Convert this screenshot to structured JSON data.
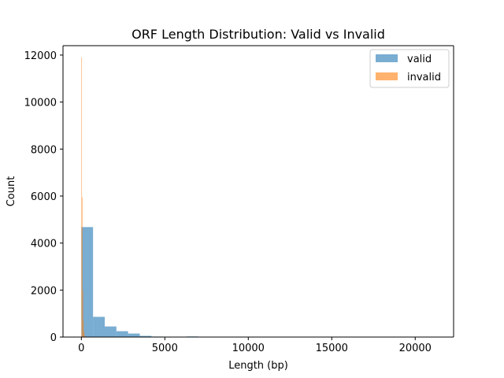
{
  "chart_data": {
    "type": "bar",
    "title": "ORF Length Distribution: Valid vs Invalid",
    "xlabel": "Length (bp)",
    "ylabel": "Count",
    "xlim": [
      -1100,
      22300
    ],
    "ylim": [
      0,
      12400
    ],
    "xticks": [
      0,
      5000,
      10000,
      15000,
      20000
    ],
    "yticks": [
      0,
      2000,
      4000,
      6000,
      8000,
      10000,
      12000
    ],
    "grid": false,
    "legend_position": "top-right",
    "series": [
      {
        "name": "valid",
        "color": "#1f77b4",
        "opacity": 0.6,
        "bins": [
          {
            "x0": 0,
            "x1": 700,
            "count": 4680
          },
          {
            "x0": 700,
            "x1": 1400,
            "count": 860
          },
          {
            "x0": 1400,
            "x1": 2100,
            "count": 450
          },
          {
            "x0": 2100,
            "x1": 2800,
            "count": 250
          },
          {
            "x0": 2800,
            "x1": 3500,
            "count": 150
          },
          {
            "x0": 3500,
            "x1": 4200,
            "count": 50
          },
          {
            "x0": 4200,
            "x1": 4900,
            "count": 20
          },
          {
            "x0": 4900,
            "x1": 5600,
            "count": 10
          },
          {
            "x0": 5600,
            "x1": 6300,
            "count": 5
          },
          {
            "x0": 6300,
            "x1": 7000,
            "count": 25
          },
          {
            "x0": 7000,
            "x1": 7700,
            "count": 5
          },
          {
            "x0": 7700,
            "x1": 8400,
            "count": 3
          },
          {
            "x0": 8400,
            "x1": 9100,
            "count": 2
          },
          {
            "x0": 9100,
            "x1": 9800,
            "count": 2
          },
          {
            "x0": 9800,
            "x1": 10500,
            "count": 1
          },
          {
            "x0": 10500,
            "x1": 11200,
            "count": 1
          },
          {
            "x0": 11200,
            "x1": 11900,
            "count": 1
          },
          {
            "x0": 11900,
            "x1": 12600,
            "count": 1
          },
          {
            "x0": 12600,
            "x1": 13300,
            "count": 1
          },
          {
            "x0": 13300,
            "x1": 14000,
            "count": 1
          },
          {
            "x0": 14000,
            "x1": 14700,
            "count": 1
          },
          {
            "x0": 14700,
            "x1": 15400,
            "count": 1
          },
          {
            "x0": 15400,
            "x1": 16100,
            "count": 1
          },
          {
            "x0": 16100,
            "x1": 16800,
            "count": 1
          },
          {
            "x0": 16800,
            "x1": 17500,
            "count": 1
          },
          {
            "x0": 17500,
            "x1": 18200,
            "count": 1
          },
          {
            "x0": 18200,
            "x1": 18900,
            "count": 1
          },
          {
            "x0": 18900,
            "x1": 19600,
            "count": 1
          },
          {
            "x0": 19600,
            "x1": 20300,
            "count": 1
          },
          {
            "x0": 20300,
            "x1": 21000,
            "count": 1
          }
        ]
      },
      {
        "name": "invalid",
        "color": "#ff7f0e",
        "opacity": 0.6,
        "bins": [
          {
            "x0": 0,
            "x1": 35,
            "count": 11900
          },
          {
            "x0": 35,
            "x1": 70,
            "count": 5950
          },
          {
            "x0": 70,
            "x1": 105,
            "count": 2000
          },
          {
            "x0": 105,
            "x1": 140,
            "count": 700
          },
          {
            "x0": 140,
            "x1": 175,
            "count": 250
          },
          {
            "x0": 175,
            "x1": 210,
            "count": 100
          },
          {
            "x0": 210,
            "x1": 245,
            "count": 40
          },
          {
            "x0": 245,
            "x1": 280,
            "count": 15
          },
          {
            "x0": 280,
            "x1": 315,
            "count": 5
          }
        ]
      }
    ]
  }
}
